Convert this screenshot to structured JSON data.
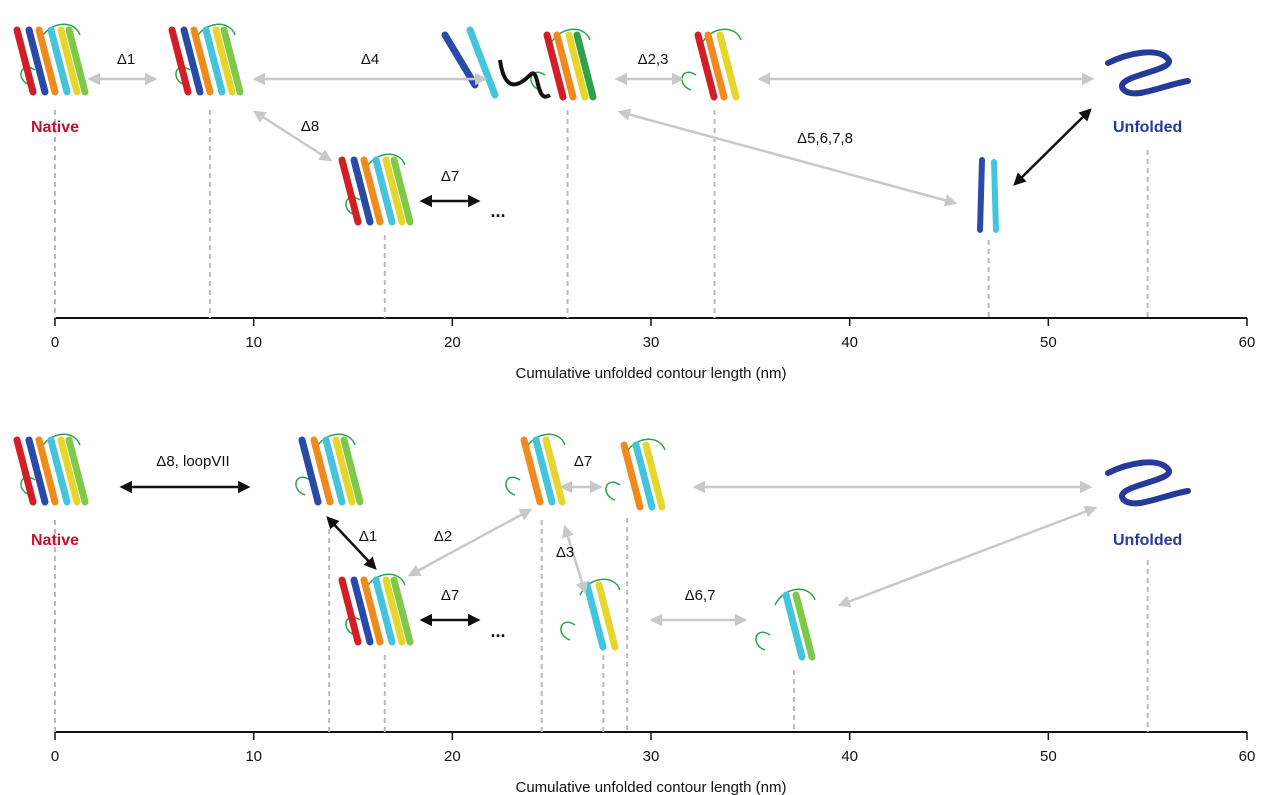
{
  "panels": [
    {
      "xlim": [
        0,
        60
      ],
      "xticks": [
        0,
        10,
        20,
        30,
        40,
        50,
        60
      ],
      "xlabel": "Cumulative unfolded contour length (nm)",
      "states": [
        {
          "label": "Native",
          "x": 0
        },
        {
          "x": 7.8
        },
        {
          "x": 16.6
        },
        {
          "x": 25.8
        },
        {
          "x": 33.2
        },
        {
          "x": 47
        },
        {
          "label": "Unfolded",
          "x": 55
        }
      ],
      "transitions": [
        "Δ1",
        "Δ4",
        "Δ8",
        "Δ7",
        "Δ2,3",
        "Δ5,6,7,8"
      ],
      "ellipsis": "..."
    },
    {
      "xlim": [
        0,
        60
      ],
      "xticks": [
        0,
        10,
        20,
        30,
        40,
        50,
        60
      ],
      "xlabel": "Cumulative unfolded contour length (nm)",
      "states": [
        {
          "label": "Native",
          "x": 0
        },
        {
          "x": 13.8
        },
        {
          "x": 16.6
        },
        {
          "x": 24.5
        },
        {
          "x": 28.8
        },
        {
          "x": 27.6
        },
        {
          "x": 37.2
        },
        {
          "label": "Unfolded",
          "x": 55
        }
      ],
      "transitions": [
        "Δ8, loopVII",
        "Δ1",
        "Δ2",
        "Δ7",
        "Δ3",
        "Δ7",
        "Δ6,7"
      ],
      "ellipsis": "..."
    }
  ]
}
